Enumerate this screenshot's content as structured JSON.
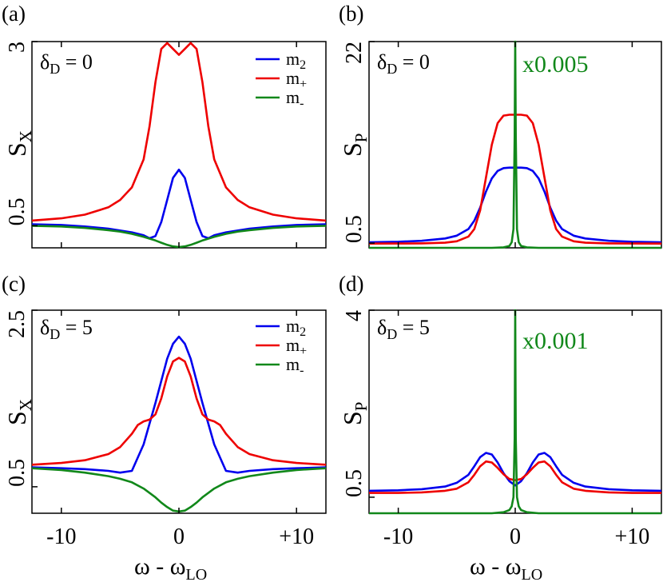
{
  "figure": {
    "xlabel_main": "ω - ω",
    "xlabel_sub": "LO"
  },
  "chart_data": [
    {
      "panel_label": "(a)",
      "type": "line",
      "annotation_main": "δ",
      "annotation_sub": "D",
      "annotation_rest": " = 0",
      "ylabel_main": "S",
      "ylabel_sub": "X",
      "xlim": [
        -12.5,
        12.5
      ],
      "ylim": [
        0.2,
        3.0
      ],
      "xticks": [
        -10,
        0,
        10
      ],
      "xtick_labels": [
        "-10",
        "0",
        "+10"
      ],
      "yticks": [
        0.5,
        3
      ],
      "ytick_labels": [
        "0.5",
        "3"
      ],
      "show_xticklabels": false,
      "scale_label": "",
      "legend": [
        {
          "main": "m",
          "sub": "2",
          "color": "#0000ee"
        },
        {
          "main": "m",
          "sub": "+",
          "color": "#ee0000"
        },
        {
          "main": "m",
          "sub": "-",
          "color": "#11881a"
        }
      ],
      "series": [
        {
          "name": "m2",
          "color": "#0000ee",
          "x": [
            -12.5,
            -10,
            -8,
            -6,
            -4,
            -3,
            -2.5,
            -2,
            -1.5,
            -1,
            -0.5,
            0,
            0.5,
            1,
            1.5,
            2,
            2.5,
            3,
            4,
            6,
            8,
            10,
            12.5
          ],
          "y": [
            0.52,
            0.51,
            0.49,
            0.46,
            0.41,
            0.37,
            0.33,
            0.36,
            0.55,
            0.85,
            1.15,
            1.26,
            1.15,
            0.85,
            0.55,
            0.36,
            0.33,
            0.37,
            0.41,
            0.46,
            0.49,
            0.51,
            0.52
          ]
        },
        {
          "name": "m+",
          "color": "#ee0000",
          "x": [
            -12.5,
            -10,
            -8,
            -6,
            -5,
            -4,
            -3,
            -2.5,
            -2,
            -1.5,
            -1,
            -0.5,
            0,
            0.5,
            1,
            1.5,
            2,
            2.5,
            3,
            4,
            5,
            6,
            8,
            10,
            12.5
          ],
          "y": [
            0.57,
            0.6,
            0.65,
            0.75,
            0.85,
            1.02,
            1.4,
            1.85,
            2.45,
            2.9,
            2.98,
            2.9,
            2.82,
            2.9,
            2.98,
            2.9,
            2.45,
            1.85,
            1.4,
            1.02,
            0.85,
            0.75,
            0.65,
            0.6,
            0.57
          ]
        },
        {
          "name": "m-",
          "color": "#11881a",
          "x": [
            -12.5,
            -10,
            -8,
            -6,
            -5,
            -4,
            -3,
            -2,
            -1.5,
            -1,
            -0.5,
            0,
            0.5,
            1,
            1.5,
            2,
            3,
            4,
            5,
            6,
            8,
            10,
            12.5
          ],
          "y": [
            0.5,
            0.49,
            0.47,
            0.44,
            0.42,
            0.39,
            0.35,
            0.3,
            0.27,
            0.24,
            0.22,
            0.21,
            0.22,
            0.24,
            0.27,
            0.3,
            0.35,
            0.39,
            0.42,
            0.44,
            0.47,
            0.49,
            0.5
          ]
        }
      ]
    },
    {
      "panel_label": "(b)",
      "type": "line",
      "annotation_main": "δ",
      "annotation_sub": "D",
      "annotation_rest": " = 0",
      "ylabel_main": "S",
      "ylabel_sub": "P",
      "xlim": [
        -12.5,
        12.5
      ],
      "ylim": [
        0.0,
        22.0
      ],
      "xticks": [
        -10,
        0,
        10
      ],
      "xtick_labels": [
        "-10",
        "0",
        "+10"
      ],
      "yticks": [
        0.5,
        22
      ],
      "ytick_labels": [
        "0.5",
        "22"
      ],
      "show_xticklabels": false,
      "scale_label": "x0.005",
      "scale_color": "#11881a",
      "legend": [],
      "series": [
        {
          "name": "m2",
          "color": "#0000ee",
          "x": [
            -12.5,
            -10,
            -8,
            -6,
            -5,
            -4,
            -3.5,
            -3,
            -2.5,
            -2,
            -1.5,
            -1,
            -0.5,
            0,
            0.5,
            1,
            1.5,
            2,
            2.5,
            3,
            3.5,
            4,
            5,
            6,
            8,
            10,
            12.5
          ],
          "y": [
            0.6,
            0.65,
            0.75,
            1.0,
            1.3,
            2.0,
            2.9,
            4.3,
            6.0,
            7.4,
            8.2,
            8.5,
            8.55,
            8.55,
            8.55,
            8.5,
            8.2,
            7.4,
            6.0,
            4.3,
            2.9,
            2.0,
            1.3,
            1.0,
            0.75,
            0.65,
            0.6
          ]
        },
        {
          "name": "m+",
          "color": "#ee0000",
          "x": [
            -12.5,
            -10,
            -8,
            -6,
            -5,
            -4,
            -3.5,
            -3,
            -2.5,
            -2,
            -1.5,
            -1,
            -0.5,
            0,
            0.5,
            1,
            1.5,
            2,
            2.5,
            3,
            3.5,
            4,
            5,
            6,
            8,
            10,
            12.5
          ],
          "y": [
            0.45,
            0.46,
            0.48,
            0.55,
            0.7,
            1.2,
            2.0,
            4.0,
            7.5,
            11.0,
            13.3,
            14.1,
            14.2,
            14.2,
            14.2,
            14.1,
            13.3,
            11.0,
            7.5,
            4.0,
            2.0,
            1.2,
            0.7,
            0.55,
            0.48,
            0.46,
            0.45
          ]
        },
        {
          "name": "m- (x0.005)",
          "color": "#11881a",
          "x": [
            -12.5,
            -2,
            -1,
            -0.5,
            -0.3,
            -0.15,
            -0.05,
            0,
            0.05,
            0.15,
            0.3,
            0.5,
            1,
            2,
            12.5
          ],
          "y": [
            0.0,
            0.0,
            0.05,
            0.2,
            0.6,
            2.0,
            12.0,
            22.0,
            12.0,
            2.0,
            0.6,
            0.2,
            0.05,
            0.0,
            0.0
          ]
        }
      ]
    },
    {
      "panel_label": "(c)",
      "type": "line",
      "annotation_main": "δ",
      "annotation_sub": "D",
      "annotation_rest": " = 5",
      "ylabel_main": "S",
      "ylabel_sub": "X",
      "xlim": [
        -12.5,
        12.5
      ],
      "ylim": [
        0.2,
        2.5
      ],
      "xticks": [
        -10,
        0,
        10
      ],
      "xtick_labels": [
        "-10",
        "0",
        "+10"
      ],
      "yticks": [
        0.5,
        2.5
      ],
      "ytick_labels": [
        "0.5",
        "2.5"
      ],
      "show_xticklabels": true,
      "scale_label": "",
      "legend": [
        {
          "main": "m",
          "sub": "2",
          "color": "#0000ee"
        },
        {
          "main": "m",
          "sub": "+",
          "color": "#ee0000"
        },
        {
          "main": "m",
          "sub": "-",
          "color": "#11881a"
        }
      ],
      "series": [
        {
          "name": "m2",
          "color": "#0000ee",
          "x": [
            -12.5,
            -10,
            -8,
            -6,
            -5,
            -4,
            -3,
            -2,
            -1,
            -0.5,
            0,
            0.5,
            1,
            2,
            3,
            4,
            5,
            6,
            8,
            10,
            12.5
          ],
          "y": [
            0.72,
            0.71,
            0.7,
            0.68,
            0.66,
            0.68,
            0.98,
            1.45,
            1.95,
            2.12,
            2.2,
            2.12,
            1.95,
            1.45,
            0.98,
            0.68,
            0.66,
            0.68,
            0.7,
            0.71,
            0.72
          ]
        },
        {
          "name": "m+",
          "color": "#ee0000",
          "x": [
            -12.5,
            -10,
            -8,
            -6,
            -5,
            -4,
            -3.5,
            -3,
            -2.5,
            -2,
            -1.5,
            -1,
            -0.5,
            0,
            0.5,
            1,
            1.5,
            2,
            2.5,
            3,
            3.5,
            4,
            5,
            6,
            8,
            10,
            12.5
          ],
          "y": [
            0.75,
            0.77,
            0.8,
            0.87,
            0.95,
            1.1,
            1.2,
            1.24,
            1.26,
            1.32,
            1.5,
            1.75,
            1.92,
            1.96,
            1.92,
            1.75,
            1.5,
            1.32,
            1.26,
            1.24,
            1.2,
            1.1,
            0.95,
            0.87,
            0.8,
            0.77,
            0.75
          ]
        },
        {
          "name": "m-",
          "color": "#11881a",
          "x": [
            -12.5,
            -10,
            -8,
            -6,
            -5,
            -4,
            -3,
            -2,
            -1.5,
            -1,
            -0.5,
            0,
            0.5,
            1,
            1.5,
            2,
            3,
            4,
            5,
            6,
            8,
            10,
            12.5
          ],
          "y": [
            0.71,
            0.69,
            0.66,
            0.62,
            0.59,
            0.55,
            0.48,
            0.38,
            0.32,
            0.27,
            0.23,
            0.22,
            0.23,
            0.27,
            0.32,
            0.38,
            0.48,
            0.55,
            0.59,
            0.62,
            0.66,
            0.69,
            0.71
          ]
        }
      ]
    },
    {
      "panel_label": "(d)",
      "type": "line",
      "annotation_main": "δ",
      "annotation_sub": "D",
      "annotation_rest": " = 5",
      "ylabel_main": "S",
      "ylabel_sub": "P",
      "xlim": [
        -12.5,
        12.5
      ],
      "ylim": [
        0.2,
        4.0
      ],
      "xticks": [
        -10,
        0,
        10
      ],
      "xtick_labels": [
        "-10",
        "0",
        "+10"
      ],
      "yticks": [
        0.5,
        4
      ],
      "ytick_labels": [
        "0.5",
        "4"
      ],
      "show_xticklabels": true,
      "scale_label": "x0.001",
      "scale_color": "#11881a",
      "legend": [],
      "series": [
        {
          "name": "m2",
          "color": "#0000ee",
          "x": [
            -12.5,
            -10,
            -8,
            -6,
            -5,
            -4,
            -3.5,
            -3,
            -2.5,
            -2,
            -1.5,
            -1,
            -0.5,
            0,
            0.5,
            1,
            1.5,
            2,
            2.5,
            3,
            3.5,
            4,
            5,
            6,
            8,
            10,
            12.5
          ],
          "y": [
            0.62,
            0.63,
            0.65,
            0.7,
            0.77,
            0.92,
            1.08,
            1.25,
            1.33,
            1.3,
            1.15,
            0.95,
            0.8,
            0.72,
            0.8,
            0.95,
            1.15,
            1.3,
            1.33,
            1.25,
            1.08,
            0.92,
            0.77,
            0.7,
            0.65,
            0.63,
            0.62
          ]
        },
        {
          "name": "m+",
          "color": "#ee0000",
          "x": [
            -12.5,
            -10,
            -8,
            -6,
            -5,
            -4,
            -3.5,
            -3,
            -2.5,
            -2,
            -1.5,
            -1,
            -0.5,
            0,
            0.5,
            1,
            1.5,
            2,
            2.5,
            3,
            3.5,
            4,
            5,
            6,
            8,
            10,
            12.5
          ],
          "y": [
            0.58,
            0.58,
            0.59,
            0.62,
            0.66,
            0.78,
            0.92,
            1.08,
            1.17,
            1.15,
            1.05,
            0.93,
            0.84,
            0.82,
            0.84,
            0.93,
            1.05,
            1.15,
            1.17,
            1.08,
            0.92,
            0.78,
            0.66,
            0.62,
            0.59,
            0.58,
            0.58
          ]
        },
        {
          "name": "m- (x0.001)",
          "color": "#11881a",
          "x": [
            -12.5,
            -2,
            -1,
            -0.5,
            -0.3,
            -0.15,
            -0.05,
            0,
            0.05,
            0.15,
            0.3,
            0.5,
            1,
            2,
            12.5
          ],
          "y": [
            0.2,
            0.2,
            0.22,
            0.26,
            0.33,
            0.5,
            1.6,
            4.0,
            1.6,
            0.5,
            0.33,
            0.26,
            0.22,
            0.2,
            0.2
          ]
        }
      ]
    }
  ]
}
